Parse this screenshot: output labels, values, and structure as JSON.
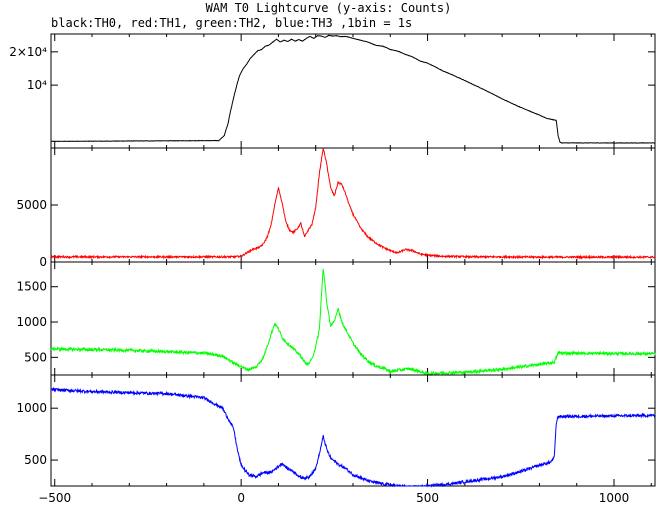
{
  "title": "WAM T0 Lightcurve (y-axis: Counts)",
  "subtitle": "black:TH0, red:TH1, green:TH2, blue:TH3 ,1bin = 1s",
  "chart_data": [
    {
      "type": "line",
      "panel": "TH0",
      "color": "#000000",
      "xlim": [
        -510,
        1110
      ],
      "ylim": [
        2700,
        29000
      ],
      "yscale": "log",
      "yticks": [
        {
          "value": 10000,
          "label": "10⁴"
        },
        {
          "value": 20000,
          "label": "2×10⁴"
        }
      ],
      "series": [
        {
          "x": [
            -510,
            -60,
            -45,
            -35,
            -25,
            -15,
            -5,
            5,
            15,
            25,
            35,
            45,
            55,
            65,
            75,
            85,
            95,
            105,
            115,
            125,
            135,
            145,
            155,
            165,
            175,
            185,
            195,
            205,
            215,
            225,
            235,
            245,
            255,
            265,
            275,
            285,
            300,
            320,
            340,
            360,
            380,
            400,
            420,
            440,
            460,
            480,
            500,
            540,
            580,
            620,
            660,
            700,
            740,
            780,
            820,
            845,
            850,
            855,
            860,
            1110
          ],
          "y": [
            3100,
            3150,
            3500,
            4500,
            6500,
            9000,
            12000,
            14000,
            15500,
            17500,
            19000,
            20500,
            21000,
            22500,
            23000,
            24500,
            26000,
            24500,
            25500,
            24800,
            26000,
            25000,
            25800,
            25000,
            26500,
            27500,
            26500,
            28000,
            27800,
            27000,
            28200,
            27800,
            28000,
            27500,
            27600,
            27400,
            26500,
            25500,
            24500,
            23000,
            22500,
            21000,
            20300,
            19000,
            18000,
            16500,
            15800,
            13500,
            11800,
            10200,
            8800,
            7500,
            6500,
            5700,
            5000,
            4800,
            3500,
            3050,
            3000,
            3000
          ]
        }
      ]
    },
    {
      "type": "line",
      "panel": "TH1",
      "color": "#ff0000",
      "xlim": [
        -510,
        1110
      ],
      "ylim": [
        0,
        10000
      ],
      "yticks": [
        0,
        5000
      ],
      "series": [
        {
          "x": [
            -510,
            -20,
            0,
            10,
            20,
            30,
            40,
            50,
            60,
            70,
            80,
            90,
            100,
            110,
            120,
            130,
            140,
            150,
            160,
            170,
            180,
            190,
            200,
            210,
            220,
            230,
            240,
            250,
            260,
            270,
            280,
            290,
            300,
            320,
            340,
            360,
            380,
            400,
            420,
            440,
            460,
            480,
            500,
            540,
            580,
            620,
            700,
            800,
            900,
            1000,
            1110
          ],
          "y": [
            450,
            450,
            500,
            700,
            900,
            1100,
            1200,
            1300,
            1600,
            2200,
            3200,
            5000,
            6500,
            5200,
            3500,
            2800,
            2600,
            2900,
            3400,
            2200,
            2800,
            3300,
            4800,
            7800,
            10000,
            8500,
            6500,
            5800,
            7000,
            6800,
            6000,
            5000,
            4200,
            3000,
            2200,
            1700,
            1300,
            1000,
            800,
            1100,
            1000,
            700,
            600,
            500,
            480,
            450,
            450,
            430,
            430,
            430,
            430
          ]
        }
      ]
    },
    {
      "type": "line",
      "panel": "TH2",
      "color": "#00ff00",
      "xlim": [
        -510,
        1110
      ],
      "ylim": [
        250,
        1850
      ],
      "yticks": [
        500,
        1000,
        1500
      ],
      "series": [
        {
          "x": [
            -510,
            -400,
            -300,
            -200,
            -100,
            -50,
            -20,
            0,
            10,
            20,
            40,
            60,
            80,
            90,
            100,
            110,
            120,
            140,
            160,
            170,
            180,
            190,
            200,
            210,
            215,
            220,
            225,
            230,
            240,
            250,
            260,
            270,
            280,
            290,
            300,
            320,
            340,
            360,
            380,
            400,
            450,
            500,
            600,
            700,
            800,
            840,
            850,
            1110
          ],
          "y": [
            620,
            610,
            600,
            580,
            560,
            520,
            420,
            370,
            340,
            330,
            360,
            500,
            820,
            980,
            900,
            780,
            720,
            620,
            520,
            430,
            400,
            480,
            650,
            900,
            1350,
            1750,
            1550,
            1250,
            950,
            1000,
            1200,
            1000,
            900,
            800,
            700,
            550,
            450,
            380,
            350,
            300,
            340,
            270,
            290,
            330,
            400,
            430,
            560,
            550
          ]
        }
      ]
    },
    {
      "type": "line",
      "panel": "TH3",
      "color": "#0000ff",
      "xlim": [
        -510,
        1110
      ],
      "ylim": [
        250,
        1320
      ],
      "yticks": [
        500,
        1000
      ],
      "series": [
        {
          "x": [
            -510,
            -400,
            -300,
            -200,
            -100,
            -50,
            -20,
            -10,
            0,
            20,
            40,
            60,
            80,
            100,
            110,
            120,
            140,
            160,
            180,
            200,
            210,
            220,
            230,
            240,
            260,
            280,
            300,
            340,
            380,
            420,
            460,
            500,
            560,
            620,
            700,
            760,
            800,
            830,
            840,
            845,
            850,
            1110
          ],
          "y": [
            1180,
            1160,
            1150,
            1140,
            1100,
            1000,
            800,
            600,
            450,
            360,
            340,
            380,
            380,
            440,
            470,
            430,
            390,
            330,
            330,
            420,
            560,
            730,
            600,
            520,
            460,
            420,
            360,
            300,
            270,
            250,
            240,
            250,
            270,
            300,
            340,
            400,
            450,
            480,
            530,
            850,
            920,
            930
          ]
        }
      ]
    }
  ],
  "xaxis": {
    "ticks": [
      -500,
      0,
      500,
      1000
    ]
  }
}
